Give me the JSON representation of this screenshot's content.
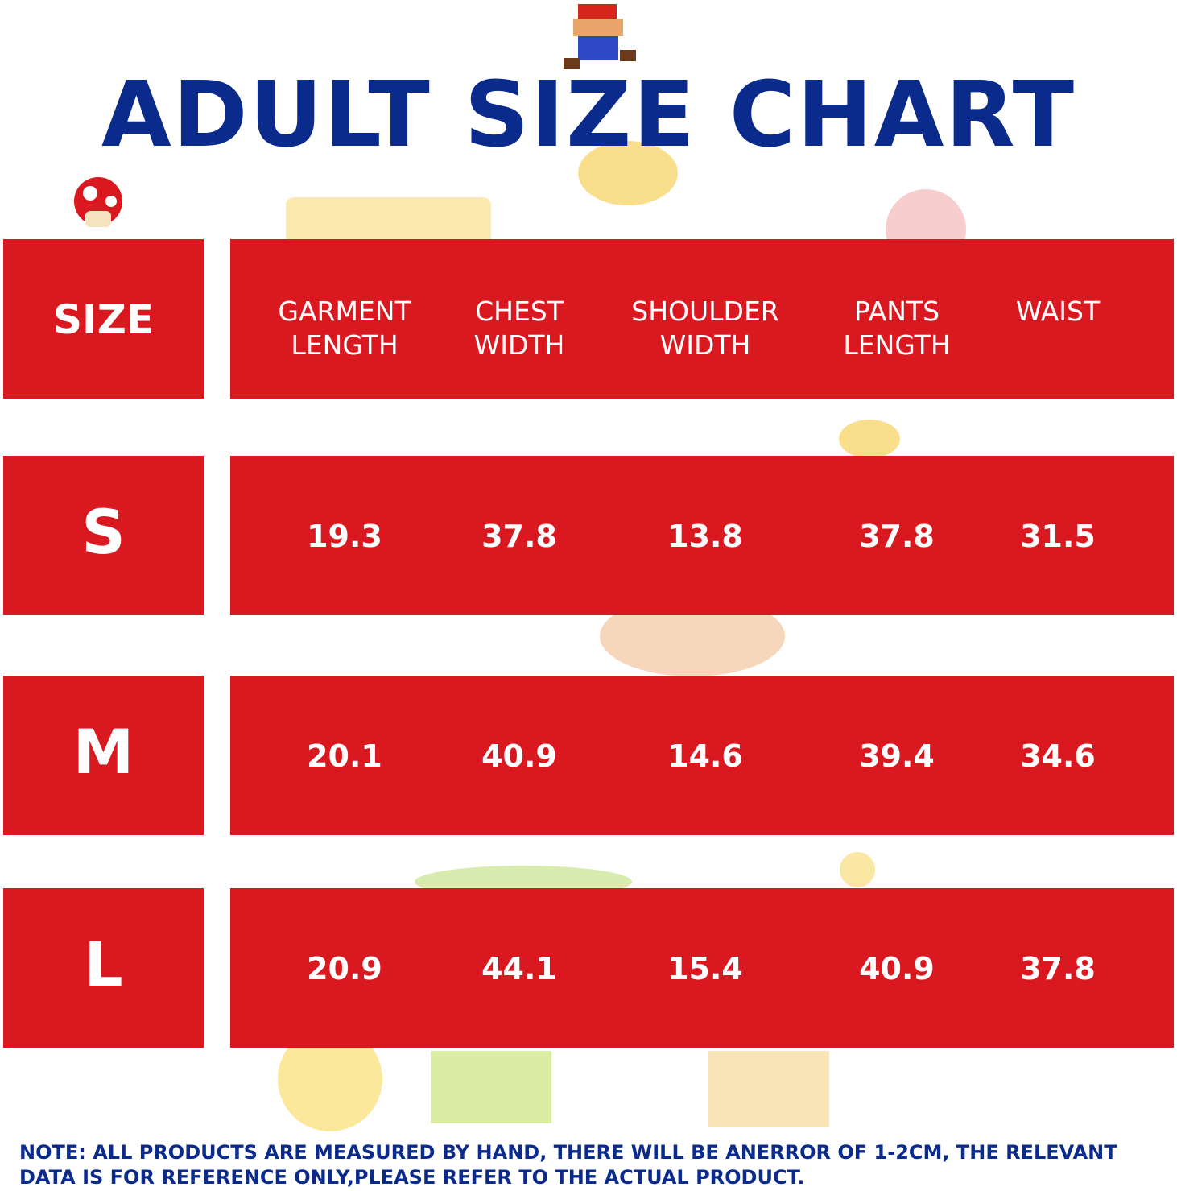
{
  "title": "ADULT SIZE CHART",
  "table": {
    "header": [
      "SIZE",
      "GARMENT LENGTH",
      "CHEST WIDTH",
      "SHOULDER WIDTH",
      "PANTS LENGTH",
      "WAIST"
    ],
    "rows": [
      [
        "S",
        "19.3",
        "37.8",
        "13.8",
        "37.8",
        "31.5"
      ],
      [
        "M",
        "20.1",
        "40.9",
        "14.6",
        "39.4",
        "34.6"
      ],
      [
        "L",
        "20.9",
        "44.1",
        "15.4",
        "40.9",
        "37.8"
      ]
    ]
  },
  "note": "NOTE: ALL PRODUCTS ARE MEASURED BY HAND, THERE WILL BE ANERROR OF 1-2CM, THE RELEVANT DATA IS FOR REFERENCE ONLY,PLEASE REFER TO THE ACTUAL PRODUCT."
}
